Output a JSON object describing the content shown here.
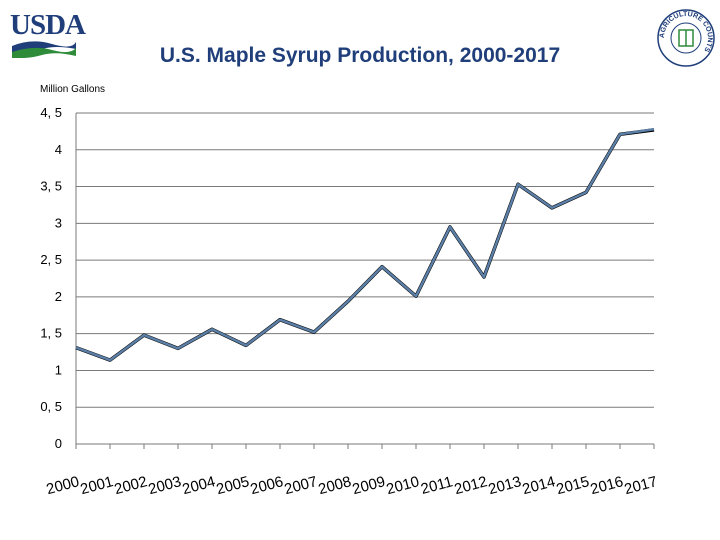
{
  "header": {
    "logo_text": "USDA",
    "title": "U.S. Maple Syrup Production, 2000-2017",
    "seal_text": "AGRICULTURE COUNTS",
    "colors": {
      "title": "#1f3e7a",
      "logo_blue": "#1f3e7a",
      "logo_green": "#2e8b3a"
    }
  },
  "chart_data": {
    "type": "line",
    "title": "U.S. Maple Syrup Production, 2000-2017",
    "ylabel": "Million Gallons",
    "xlabel": "",
    "categories": [
      "2000",
      "2001",
      "2002",
      "2003",
      "2004",
      "2005",
      "2006",
      "2007",
      "2008",
      "2009",
      "2010",
      "2011",
      "2012",
      "2013",
      "2014",
      "2015",
      "2016",
      "2017"
    ],
    "yticks": [
      0,
      0.5,
      1,
      1.5,
      2,
      2.5,
      3,
      3.5,
      4,
      4.5
    ],
    "ytick_labels": [
      "0",
      "0, 5",
      "1",
      "1, 5",
      "2",
      "2, 5",
      "3",
      "3, 5",
      "4",
      "4, 5"
    ],
    "ylim": [
      0,
      4.5
    ],
    "grid": true,
    "series": [
      {
        "values": [
          1.31,
          1.14,
          1.48,
          1.3,
          1.56,
          1.34,
          1.69,
          1.52,
          1.94,
          2.41,
          2.01,
          2.95,
          2.27,
          3.53,
          3.21,
          3.42,
          4.21,
          4.27
        ],
        "color": "#000000"
      },
      {
        "values": [
          1.31,
          1.14,
          1.48,
          1.3,
          1.56,
          1.34,
          1.69,
          1.52,
          1.94,
          2.41,
          2.01,
          2.95,
          2.27,
          3.53,
          3.21,
          3.42,
          4.21,
          4.28
        ],
        "color": "#5b7fa6"
      }
    ]
  }
}
